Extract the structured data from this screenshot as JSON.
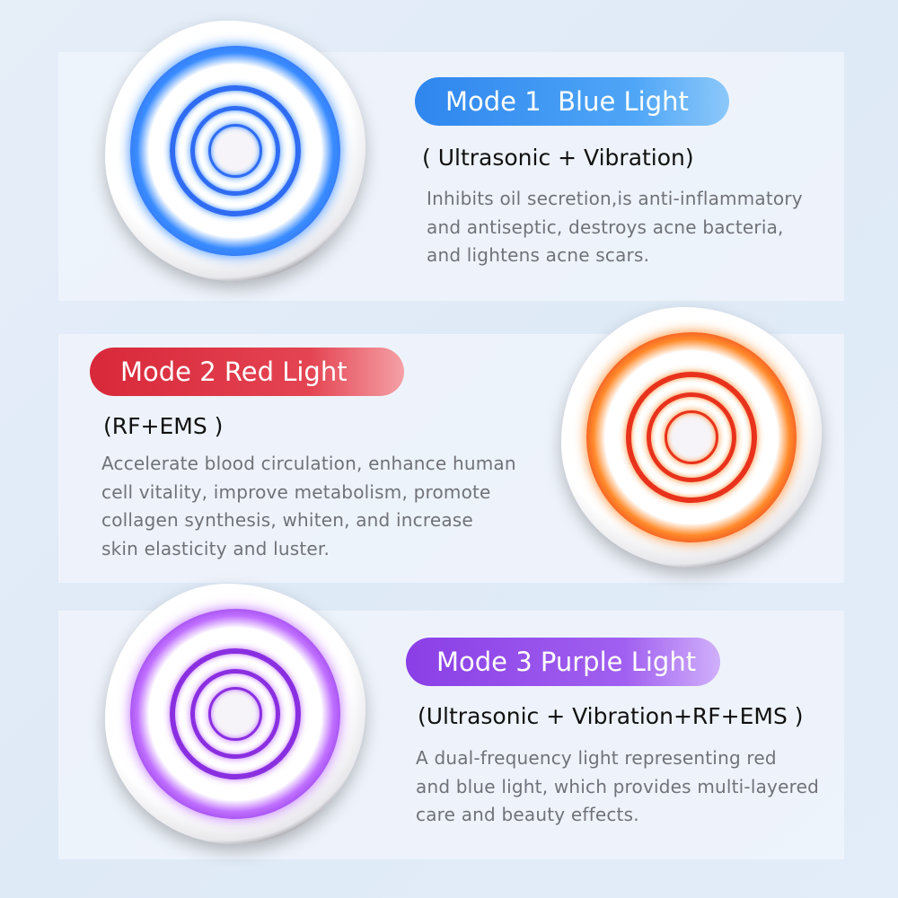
{
  "modes": [
    {
      "title": "Mode 1  Blue Light",
      "subtitle": "( Ultrasonic + Vibration)",
      "lines": [
        "Inhibits oil secretion,is anti-inflammatory",
        "and antiseptic, destroys acne bacteria,",
        "and lightens acne scars."
      ],
      "color": "#2f6cf2",
      "glow": "#3a8cff",
      "pill": "#4aa0f5"
    },
    {
      "title": "Mode 2 Red Light",
      "subtitle": "(RF+EMS )",
      "lines": [
        "Accelerate blood circulation, enhance human",
        "cell vitality, improve metabolism, promote",
        "collagen synthesis, whiten, and increase",
        "skin elasticity and luster."
      ],
      "color": "#e8321c",
      "glow": "#ff8a2a",
      "pill": "#dc3340"
    },
    {
      "title": "Mode 3 Purple Light",
      "subtitle": "(Ultrasonic + Vibration+RF+EMS )",
      "lines": [
        "A dual-frequency light representing red",
        "and blue light, which provides multi-layered",
        "care and beauty effects."
      ],
      "color": "#8a2fe0",
      "glow": "#c070ff",
      "pill": "#9b52ec"
    }
  ]
}
